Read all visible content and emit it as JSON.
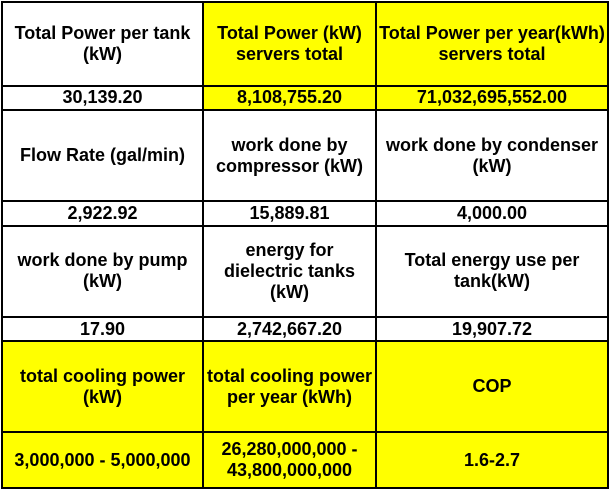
{
  "colors": {
    "highlight": "#ffff00",
    "background": "#ffffff",
    "border": "#000000",
    "text": "#000000"
  },
  "rows": [
    {
      "kind": "label",
      "cells": [
        {
          "text": "Total Power per tank (kW)",
          "highlight": false
        },
        {
          "text": "Total Power (kW) servers total",
          "highlight": true
        },
        {
          "text": "Total Power per year(kWh) servers total",
          "highlight": true
        }
      ]
    },
    {
      "kind": "value",
      "cells": [
        {
          "text": "30,139.20",
          "highlight": false
        },
        {
          "text": "8,108,755.20",
          "highlight": true
        },
        {
          "text": "71,032,695,552.00",
          "highlight": true
        }
      ]
    },
    {
      "kind": "label",
      "cells": [
        {
          "text": "Flow Rate (gal/min)",
          "highlight": false
        },
        {
          "text": "work done by compressor (kW)",
          "highlight": false
        },
        {
          "text": "work done by condenser (kW)",
          "highlight": false
        }
      ]
    },
    {
      "kind": "value",
      "cells": [
        {
          "text": "2,922.92",
          "highlight": false
        },
        {
          "text": "15,889.81",
          "highlight": false
        },
        {
          "text": "4,000.00",
          "highlight": false
        }
      ]
    },
    {
      "kind": "label",
      "cells": [
        {
          "text": "work done by pump (kW)",
          "highlight": false
        },
        {
          "text": "energy for dielectric tanks (kW)",
          "highlight": false
        },
        {
          "text": "Total energy use per tank(kW)",
          "highlight": false
        }
      ]
    },
    {
      "kind": "value",
      "cells": [
        {
          "text": "17.90",
          "highlight": false
        },
        {
          "text": "2,742,667.20",
          "highlight": false
        },
        {
          "text": "19,907.72",
          "highlight": false
        }
      ]
    },
    {
      "kind": "label",
      "cells": [
        {
          "text": "total cooling power (kW)",
          "highlight": true
        },
        {
          "text": "total cooling power per year (kWh)",
          "highlight": true
        },
        {
          "text": "COP",
          "highlight": true
        }
      ]
    },
    {
      "kind": "value",
      "cells": [
        {
          "text": "3,000,000 - 5,000,000",
          "highlight": true
        },
        {
          "text": "26,280,000,000 - 43,800,000,000",
          "highlight": true
        },
        {
          "text": "1.6-2.7",
          "highlight": true
        }
      ]
    }
  ]
}
